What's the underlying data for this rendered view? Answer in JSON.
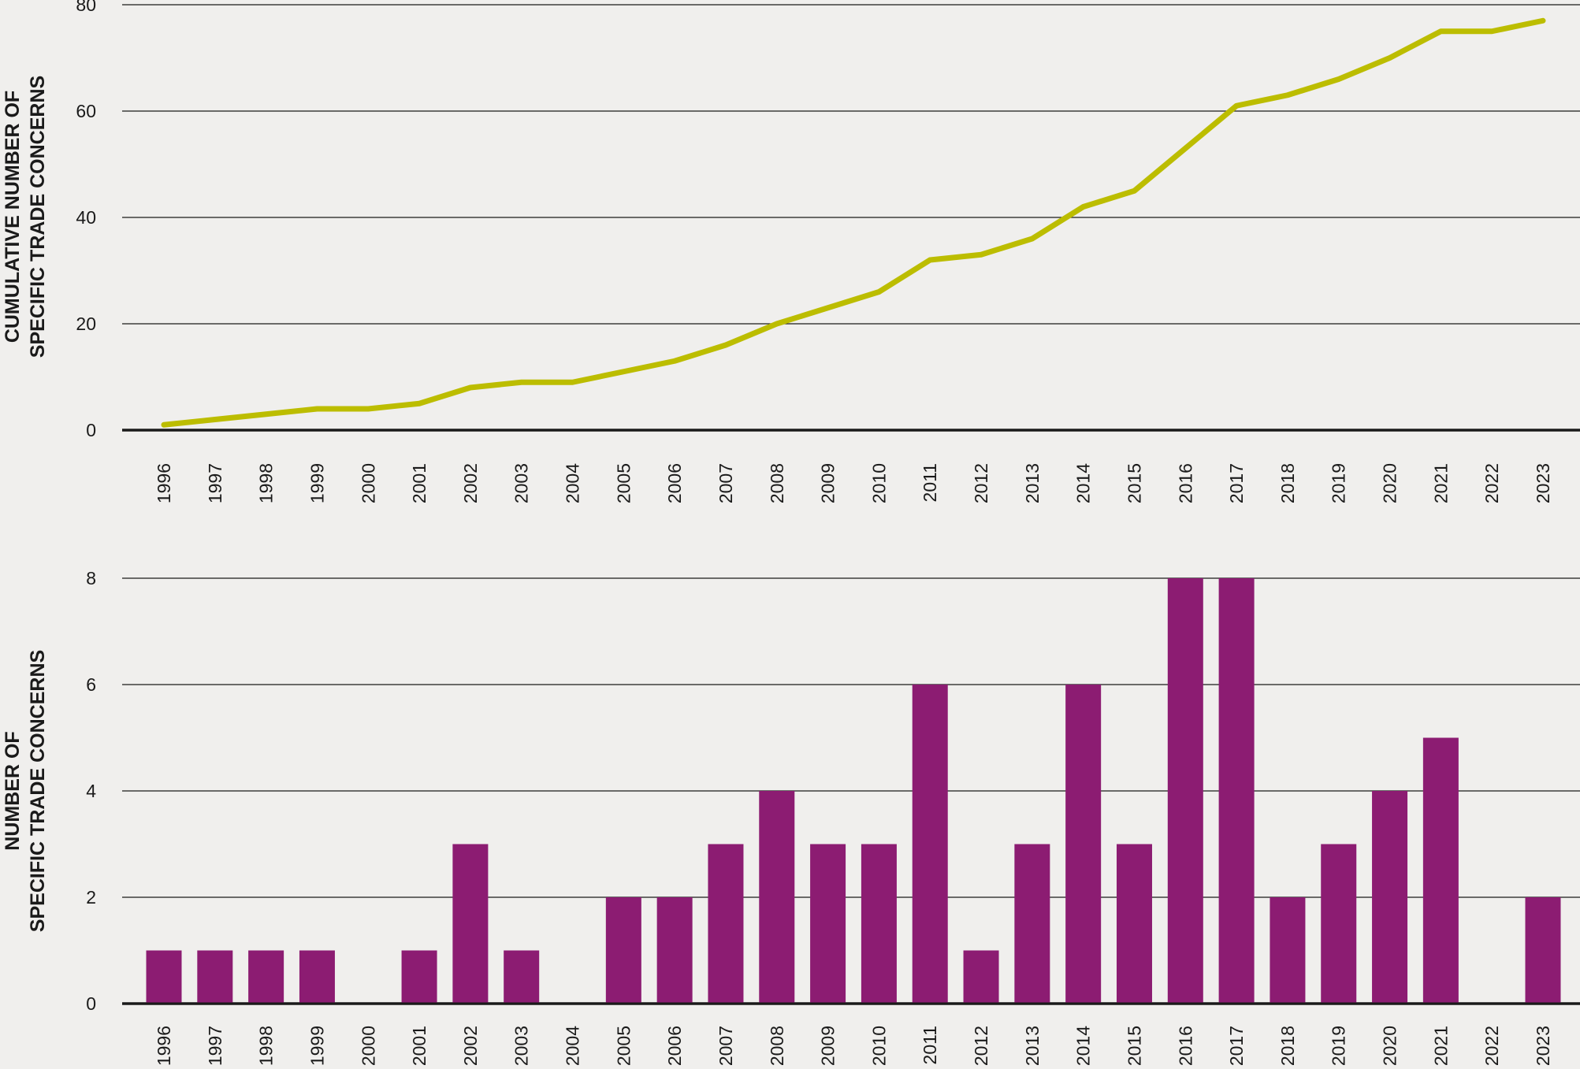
{
  "colors": {
    "background": "#f0efed",
    "line": "#bcbd00",
    "bar": "#8c1c72",
    "grid": "#1a1a1a"
  },
  "chart_data": [
    {
      "type": "line",
      "ylabel_lines": [
        "CUMULATIVE NUMBER OF",
        "SPECIFIC TRADE CONCERNS"
      ],
      "ylim": [
        0,
        80
      ],
      "yticks": [
        "0",
        "20",
        "40",
        "60",
        "80"
      ],
      "grid": true,
      "categories": [
        "1996",
        "1997",
        "1998",
        "1999",
        "2000",
        "2001",
        "2002",
        "2003",
        "2004",
        "2005",
        "2006",
        "2007",
        "2008",
        "2009",
        "2010",
        "2011",
        "2012",
        "2013",
        "2014",
        "2015",
        "2016",
        "2017",
        "2018",
        "2019",
        "2020",
        "2021",
        "2022",
        "2023"
      ],
      "values": [
        1,
        2,
        3,
        4,
        4,
        5,
        8,
        9,
        9,
        11,
        13,
        16,
        20,
        23,
        26,
        32,
        33,
        36,
        42,
        45,
        53,
        61,
        63,
        66,
        70,
        75,
        75,
        77
      ]
    },
    {
      "type": "bar",
      "ylabel_lines": [
        "NUMBER OF",
        "SPECIFIC TRADE CONCERNS"
      ],
      "ylim": [
        0,
        8
      ],
      "yticks": [
        "0",
        "2",
        "4",
        "6",
        "8"
      ],
      "grid": true,
      "categories": [
        "1996",
        "1997",
        "1998",
        "1999",
        "2000",
        "2001",
        "2002",
        "2003",
        "2004",
        "2005",
        "2006",
        "2007",
        "2008",
        "2009",
        "2010",
        "2011",
        "2012",
        "2013",
        "2014",
        "2015",
        "2016",
        "2017",
        "2018",
        "2019",
        "2020",
        "2021",
        "2022",
        "2023"
      ],
      "values": [
        1,
        1,
        1,
        1,
        0,
        1,
        3,
        1,
        0,
        2,
        2,
        3,
        4,
        3,
        3,
        6,
        1,
        3,
        6,
        3,
        8,
        8,
        2,
        3,
        4,
        5,
        0,
        2
      ]
    }
  ]
}
